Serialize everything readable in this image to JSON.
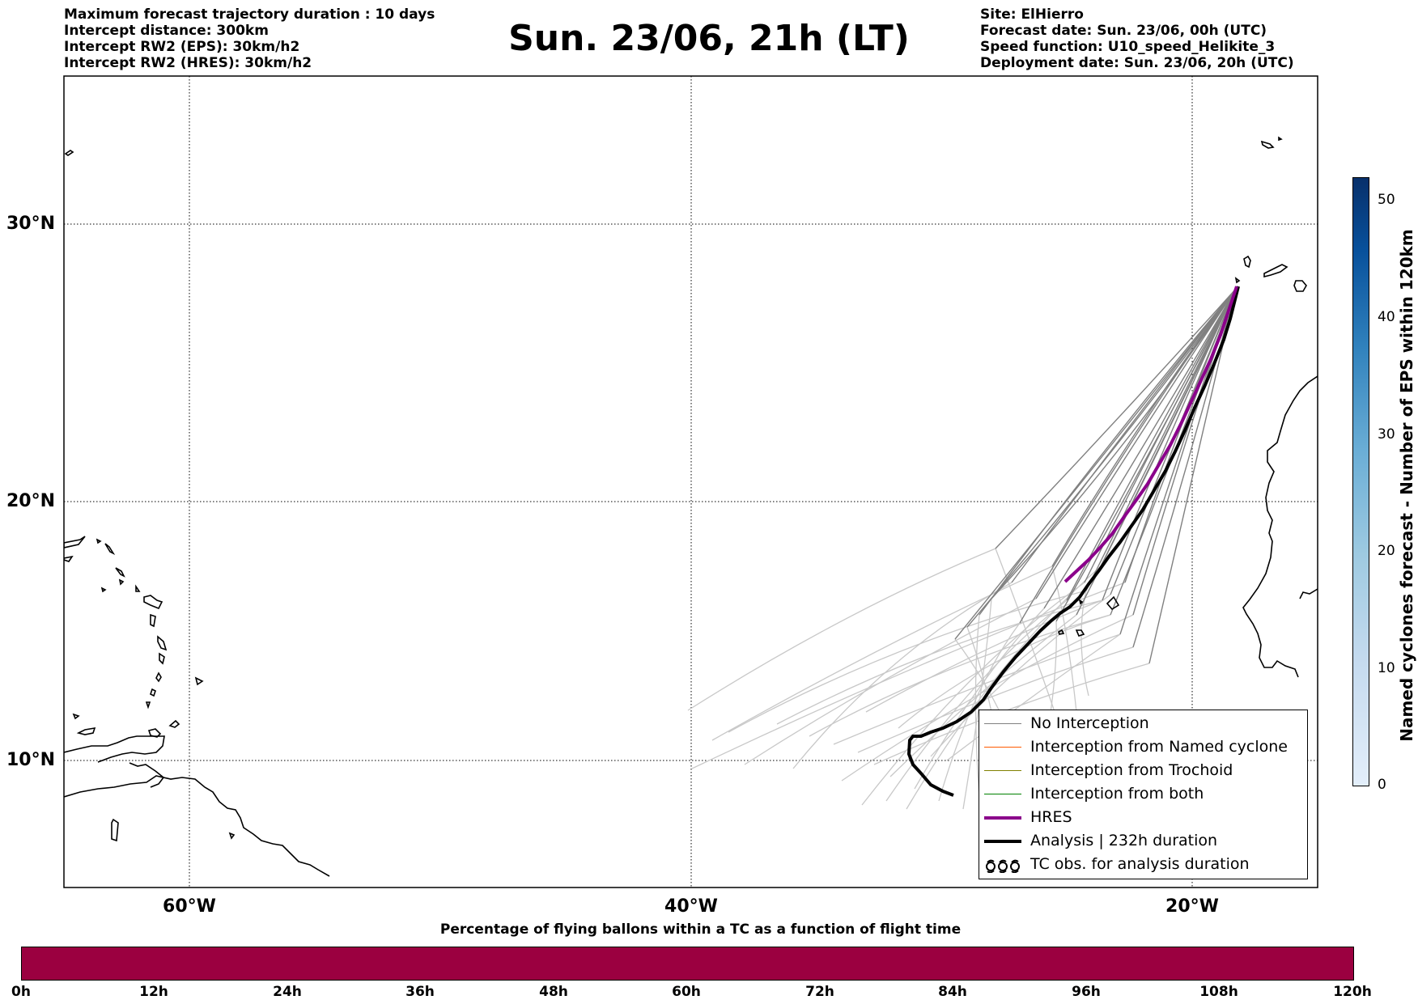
{
  "header": {
    "left_lines": [
      "Maximum forecast trajectory duration : 10 days",
      "Intercept distance: 300km",
      "Intercept RW2 (EPS):  30km/h2",
      "Intercept RW2 (HRES): 30km/h2"
    ],
    "right_lines": [
      "Site: ElHierro",
      "Forecast date: Sun. 23/06, 00h (UTC)",
      "Speed function: U10_speed_Helikite_3",
      "Deployment date: Sun. 23/06, 20h (UTC)"
    ],
    "title": "Sun. 23/06, 21h (LT)"
  },
  "map": {
    "lat_labels": [
      "30°N",
      "20°N",
      "10°N"
    ],
    "lon_labels": [
      "60°W",
      "40°W",
      "20°W"
    ],
    "colors": {
      "no_interception": "#808080",
      "no_interception_late": "#c8c8c8",
      "named_cyclone": "#ff5a00",
      "trochoid": "#808000",
      "both": "#008000",
      "hres": "#8b008b",
      "analysis": "#000000",
      "coast": "#000000"
    }
  },
  "legend": {
    "items": [
      {
        "label": "No Interception",
        "color": "#808080",
        "style": "thin"
      },
      {
        "label": "Interception from Named cyclone",
        "color": "#ff5a00",
        "style": "thin"
      },
      {
        "label": "Interception from Trochoid",
        "color": "#808000",
        "style": "thin"
      },
      {
        "label": "Interception from both",
        "color": "#008000",
        "style": "thin"
      },
      {
        "label": "HRES",
        "color": "#8b008b",
        "style": "thick"
      },
      {
        "label": "Analysis | 232h duration",
        "color": "#000000",
        "style": "thick"
      },
      {
        "label": "TC obs. for analysis duration",
        "color": "#000000",
        "style": "tc-symbol"
      }
    ]
  },
  "colorbar_vertical": {
    "label": "Named cyclones forecast - Number of EPS within 120km",
    "ticks": [
      "50",
      "40",
      "30",
      "20",
      "10",
      "0"
    ],
    "range": [
      0,
      52
    ],
    "colors": [
      "#e3eefa",
      "#08306b"
    ]
  },
  "colorbar_horizontal": {
    "title": "Percentage of flying ballons within a TC as a function of flight time",
    "ticks": [
      "0h",
      "12h",
      "24h",
      "36h",
      "48h",
      "60h",
      "72h",
      "84h",
      "96h",
      "108h",
      "120h"
    ],
    "color": "#9b0040"
  }
}
